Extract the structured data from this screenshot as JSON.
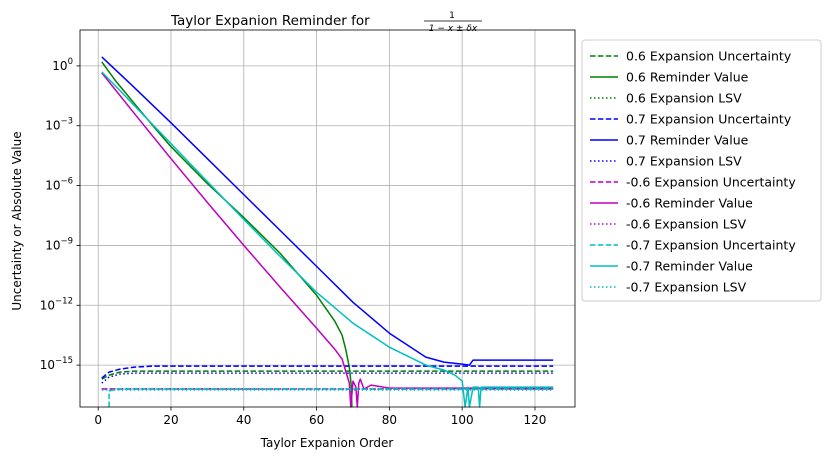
{
  "chart_data": {
    "type": "line",
    "title": "Taylor Expanion Reminder for",
    "title_fraction": {
      "numerator": "1",
      "denominator": "1 − x ± δx"
    },
    "xlabel": "Taylor Expanion Order",
    "ylabel": "Uncertainty or Absolute Value",
    "xlim": [
      -5,
      131
    ],
    "ylim_log10": [
      -17.1,
      1.8
    ],
    "y_scale": "log",
    "x_ticks": [
      0,
      20,
      40,
      60,
      80,
      100,
      120
    ],
    "y_ticks_exp": [
      0,
      -3,
      -6,
      -9,
      -12,
      -15
    ],
    "grid": true,
    "legend_position": "outside-right",
    "series": [
      {
        "name": "0.6 Expansion Uncertainty",
        "color": "#008000",
        "dash": "dashed",
        "points": [
          [
            1,
            -15.7
          ],
          [
            3,
            -15.5
          ],
          [
            6,
            -15.35
          ],
          [
            10,
            -15.3
          ],
          [
            20,
            -15.3
          ],
          [
            125,
            -15.3
          ]
        ]
      },
      {
        "name": "0.6 Reminder Value",
        "color": "#008000",
        "dash": "solid",
        "points": [
          [
            1,
            0.2
          ],
          [
            5,
            -0.8
          ],
          [
            10,
            -1.9
          ],
          [
            15,
            -3.0
          ],
          [
            20,
            -4.05
          ],
          [
            30,
            -5.9
          ],
          [
            40,
            -7.6
          ],
          [
            50,
            -9.4
          ],
          [
            60,
            -11.5
          ],
          [
            65,
            -12.8
          ],
          [
            67,
            -13.5
          ],
          [
            68,
            -14.2
          ],
          [
            69,
            -15.1
          ],
          [
            69.5,
            -16.0
          ],
          [
            69.7,
            -17.1
          ]
        ]
      },
      {
        "name": "0.6 Expansion LSV",
        "color": "#008000",
        "dash": "dotted",
        "points": [
          [
            1,
            -16.2
          ],
          [
            5,
            -16.2
          ],
          [
            125,
            -16.2
          ]
        ]
      },
      {
        "name": "0.7 Expansion Uncertainty",
        "color": "#0000ff",
        "dash": "dashed",
        "points": [
          [
            1,
            -15.65
          ],
          [
            3,
            -15.35
          ],
          [
            6,
            -15.2
          ],
          [
            10,
            -15.1
          ],
          [
            15,
            -15.05
          ],
          [
            125,
            -15.05
          ]
        ]
      },
      {
        "name": "0.7 Reminder Value",
        "color": "#0000ff",
        "dash": "solid",
        "points": [
          [
            1,
            0.45
          ],
          [
            10,
            -1.1
          ],
          [
            20,
            -2.85
          ],
          [
            30,
            -4.65
          ],
          [
            40,
            -6.45
          ],
          [
            50,
            -8.25
          ],
          [
            60,
            -10.05
          ],
          [
            70,
            -11.85
          ],
          [
            80,
            -13.4
          ],
          [
            90,
            -14.6
          ],
          [
            95,
            -14.85
          ],
          [
            100,
            -14.95
          ],
          [
            102,
            -15.0
          ],
          [
            103,
            -14.75
          ],
          [
            110,
            -14.75
          ],
          [
            125,
            -14.75
          ]
        ]
      },
      {
        "name": "0.7 Expansion LSV",
        "color": "#0000ff",
        "dash": "dotted",
        "points": [
          [
            1,
            -15.9
          ],
          [
            3,
            -15.6
          ],
          [
            6,
            -15.45
          ],
          [
            10,
            -15.4
          ],
          [
            125,
            -15.4
          ]
        ]
      },
      {
        "name": "-0.6 Expansion Uncertainty",
        "color": "#bf00bf",
        "dash": "dashed",
        "points": [
          [
            1,
            -16.2
          ],
          [
            5,
            -16.2
          ],
          [
            125,
            -16.2
          ]
        ]
      },
      {
        "name": "-0.6 Reminder Value",
        "color": "#bf00bf",
        "dash": "solid",
        "points": [
          [
            1,
            -0.35
          ],
          [
            10,
            -2.4
          ],
          [
            20,
            -4.65
          ],
          [
            30,
            -6.85
          ],
          [
            40,
            -9.0
          ],
          [
            50,
            -11.1
          ],
          [
            60,
            -13.15
          ],
          [
            65,
            -14.2
          ],
          [
            67,
            -14.7
          ],
          [
            68,
            -15.3
          ],
          [
            69,
            -15.9
          ],
          [
            69.4,
            -17.1
          ],
          [
            70,
            -15.8
          ],
          [
            70.8,
            -16.1
          ],
          [
            71.2,
            -17.1
          ],
          [
            71.6,
            -15.9
          ],
          [
            72,
            -15.7
          ],
          [
            73,
            -16.2
          ],
          [
            75,
            -16.0
          ],
          [
            80,
            -16.15
          ],
          [
            125,
            -16.15
          ]
        ]
      },
      {
        "name": "-0.6 Expansion LSV",
        "color": "#bf00bf",
        "dash": "dotted",
        "points": [
          [
            1,
            -16.2
          ],
          [
            5,
            -16.2
          ],
          [
            125,
            -16.2
          ]
        ]
      },
      {
        "name": "-0.7 Expansion Uncertainty",
        "color": "#00bfbf",
        "dash": "dashed",
        "points": [
          [
            3,
            -17.1
          ],
          [
            3,
            -16.3
          ],
          [
            5,
            -16.2
          ],
          [
            125,
            -16.2
          ]
        ]
      },
      {
        "name": "-0.7 Reminder Value",
        "color": "#00bfbf",
        "dash": "solid",
        "points": [
          [
            1,
            -0.3
          ],
          [
            10,
            -2.0
          ],
          [
            20,
            -3.9
          ],
          [
            30,
            -5.8
          ],
          [
            40,
            -7.7
          ],
          [
            50,
            -9.55
          ],
          [
            60,
            -11.35
          ],
          [
            70,
            -12.9
          ],
          [
            80,
            -14.1
          ],
          [
            90,
            -15.0
          ],
          [
            95,
            -15.25
          ],
          [
            98,
            -15.5
          ],
          [
            100,
            -15.8
          ],
          [
            100.8,
            -17.1
          ],
          [
            101.6,
            -16.1
          ],
          [
            102,
            -17.1
          ],
          [
            103,
            -16.1
          ],
          [
            104.4,
            -16.1
          ],
          [
            104.8,
            -17.1
          ],
          [
            105.2,
            -16.1
          ],
          [
            110,
            -16.1
          ],
          [
            125,
            -16.1
          ]
        ]
      },
      {
        "name": "-0.7 Expansion LSV",
        "color": "#00bfbf",
        "dash": "dotted",
        "points": [
          [
            1,
            -16.25
          ],
          [
            5,
            -16.25
          ],
          [
            125,
            -16.25
          ]
        ]
      }
    ]
  }
}
